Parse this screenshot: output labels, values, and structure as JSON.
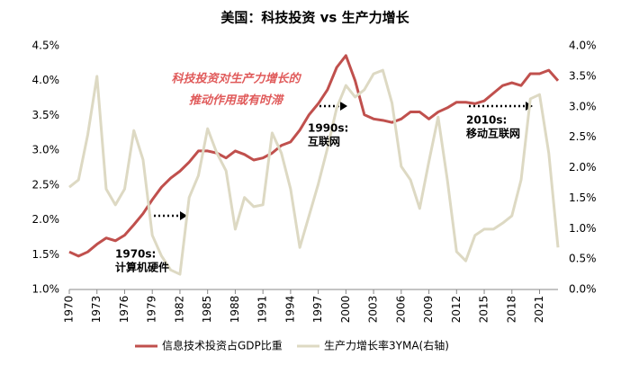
{
  "chart_data": {
    "type": "line",
    "title": "美国：科技投资 vs 生产力增长",
    "x": [
      1970,
      1971,
      1972,
      1973,
      1974,
      1975,
      1976,
      1977,
      1978,
      1979,
      1980,
      1981,
      1982,
      1983,
      1984,
      1985,
      1986,
      1987,
      1988,
      1989,
      1990,
      1991,
      1992,
      1993,
      1994,
      1995,
      1996,
      1997,
      1998,
      1999,
      2000,
      2001,
      2002,
      2003,
      2004,
      2005,
      2006,
      2007,
      2008,
      2009,
      2010,
      2011,
      2012,
      2013,
      2014,
      2015,
      2016,
      2017,
      2018,
      2019,
      2020,
      2021,
      2022,
      2023
    ],
    "series": [
      {
        "name": "信息技术投资占GDP比重",
        "color": "#c0504d",
        "axis": "y",
        "values": [
          1.54,
          1.48,
          1.54,
          1.65,
          1.74,
          1.7,
          1.78,
          1.93,
          2.09,
          2.29,
          2.47,
          2.6,
          2.7,
          2.83,
          2.99,
          2.99,
          2.96,
          2.89,
          2.99,
          2.94,
          2.86,
          2.89,
          2.96,
          3.07,
          3.12,
          3.29,
          3.51,
          3.67,
          3.87,
          4.19,
          4.36,
          4.0,
          3.51,
          3.45,
          3.43,
          3.4,
          3.45,
          3.55,
          3.55,
          3.45,
          3.55,
          3.61,
          3.69,
          3.69,
          3.67,
          3.71,
          3.82,
          3.93,
          3.97,
          3.93,
          4.1,
          4.1,
          4.15,
          4.0
        ]
      },
      {
        "name": "生产力增长率3YMA(右轴)",
        "color": "#ddd9c3",
        "axis": "y2",
        "values": [
          1.68,
          1.8,
          2.54,
          3.5,
          1.65,
          1.39,
          1.65,
          2.61,
          2.13,
          0.89,
          0.55,
          0.32,
          0.25,
          1.51,
          1.87,
          2.64,
          2.24,
          1.95,
          0.99,
          1.51,
          1.36,
          1.39,
          2.57,
          2.24,
          1.65,
          0.69,
          1.21,
          1.73,
          2.32,
          2.98,
          3.35,
          3.16,
          3.28,
          3.54,
          3.6,
          3.06,
          2.02,
          1.8,
          1.33,
          2.1,
          2.83,
          1.8,
          0.62,
          0.47,
          0.89,
          0.99,
          0.99,
          1.09,
          1.21,
          1.8,
          3.13,
          3.2,
          2.24,
          0.69
        ]
      }
    ],
    "xlim": [
      1970,
      2023
    ],
    "xticks": [
      1970,
      1973,
      1976,
      1979,
      1982,
      1985,
      1988,
      1991,
      1994,
      1997,
      2000,
      2003,
      2006,
      2009,
      2012,
      2015,
      2018,
      2021
    ],
    "ylim": [
      1.0,
      4.5
    ],
    "yticks": [
      {
        "value": 1.0,
        "label": "1.0%"
      },
      {
        "value": 1.5,
        "label": "1.5%"
      },
      {
        "value": 2.0,
        "label": "2.0%"
      },
      {
        "value": 2.5,
        "label": "2.5%"
      },
      {
        "value": 3.0,
        "label": "3.0%"
      },
      {
        "value": 3.5,
        "label": "3.5%"
      },
      {
        "value": 4.0,
        "label": "4.0%"
      },
      {
        "value": 4.5,
        "label": "4.5%"
      }
    ],
    "y2lim": [
      0.0,
      4.0
    ],
    "y2ticks": [
      {
        "value": 0.0,
        "label": "0.0%"
      },
      {
        "value": 0.5,
        "label": "0.5%"
      },
      {
        "value": 1.0,
        "label": "1.0%"
      },
      {
        "value": 1.5,
        "label": "1.5%"
      },
      {
        "value": 2.0,
        "label": "2.0%"
      },
      {
        "value": 2.5,
        "label": "2.5%"
      },
      {
        "value": 3.0,
        "label": "3.0%"
      },
      {
        "value": 3.5,
        "label": "3.5%"
      },
      {
        "value": 4.0,
        "label": "4.0%"
      }
    ],
    "legend": "bottom",
    "annotations": [
      {
        "text": "科技投资对生产力增长的"
      },
      {
        "text": "推动作用或有时滞"
      },
      {
        "text": "1970s:"
      },
      {
        "text": "计算机硬件"
      },
      {
        "text": "1990s:"
      },
      {
        "text": "互联网"
      },
      {
        "text": "2010s:"
      },
      {
        "text": "移动互联网"
      }
    ]
  }
}
